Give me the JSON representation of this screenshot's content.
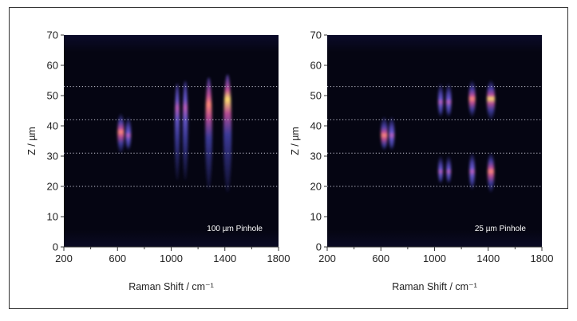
{
  "chart_data": [
    {
      "type": "heatmap",
      "annotation": "100 µm Pinhole",
      "xlabel": "Raman Shift / cm⁻¹",
      "ylabel": "Z / µm",
      "xlim": [
        200,
        1800
      ],
      "ylim": [
        0,
        70
      ],
      "xticks": [
        "200",
        "600",
        "1000",
        "1400",
        "1800"
      ],
      "xtick_values": [
        200,
        600,
        1000,
        1400,
        1800
      ],
      "yticks": [
        "0",
        "10",
        "20",
        "30",
        "40",
        "50",
        "60",
        "70"
      ],
      "ytick_values": [
        0,
        10,
        20,
        30,
        40,
        50,
        60,
        70
      ],
      "dotted_lines_z": [
        20,
        31,
        42,
        53
      ],
      "bands": [
        {
          "x": 625,
          "z_min": 31,
          "z_max": 44,
          "peak_z": 38,
          "intensity": 0.7
        },
        {
          "x": 680,
          "z_min": 32,
          "z_max": 43,
          "peak_z": 37,
          "intensity": 0.45
        },
        {
          "x": 1045,
          "z_min": 22,
          "z_max": 54,
          "peak_z": 46,
          "intensity": 0.35
        },
        {
          "x": 1105,
          "z_min": 22,
          "z_max": 55,
          "peak_z": 46,
          "intensity": 0.4
        },
        {
          "x": 1280,
          "z_min": 19,
          "z_max": 56,
          "peak_z": 47,
          "intensity": 0.75
        },
        {
          "x": 1420,
          "z_min": 18,
          "z_max": 57,
          "peak_z": 49,
          "intensity": 1.0
        }
      ]
    },
    {
      "type": "heatmap",
      "annotation": "25 µm Pinhole",
      "xlabel": "Raman Shift / cm⁻¹",
      "ylabel": "Z / µm",
      "xlim": [
        200,
        1800
      ],
      "ylim": [
        0,
        70
      ],
      "xticks": [
        "200",
        "600",
        "1000",
        "1400",
        "1800"
      ],
      "xtick_values": [
        200,
        600,
        1000,
        1400,
        1800
      ],
      "yticks": [
        "0",
        "10",
        "20",
        "30",
        "40",
        "50",
        "60",
        "70"
      ],
      "ytick_values": [
        0,
        10,
        20,
        30,
        40,
        50,
        60,
        70
      ],
      "dotted_lines_z": [
        20,
        31,
        42,
        53
      ],
      "bands": [
        {
          "x": 625,
          "z_min": 32,
          "z_max": 43,
          "peak_z": 37,
          "intensity": 0.75
        },
        {
          "x": 680,
          "z_min": 32,
          "z_max": 43,
          "peak_z": 37,
          "intensity": 0.5
        },
        {
          "x": 1045,
          "z_min": 43,
          "z_max": 54,
          "peak_z": 48,
          "intensity": 0.35
        },
        {
          "x": 1045,
          "z_min": 21,
          "z_max": 30,
          "peak_z": 25,
          "intensity": 0.3
        },
        {
          "x": 1105,
          "z_min": 43,
          "z_max": 54,
          "peak_z": 48,
          "intensity": 0.45
        },
        {
          "x": 1105,
          "z_min": 21,
          "z_max": 30,
          "peak_z": 25,
          "intensity": 0.3
        },
        {
          "x": 1280,
          "z_min": 43,
          "z_max": 55,
          "peak_z": 49,
          "intensity": 0.7
        },
        {
          "x": 1280,
          "z_min": 19,
          "z_max": 31,
          "peak_z": 25,
          "intensity": 0.45
        },
        {
          "x": 1420,
          "z_min": 42,
          "z_max": 55,
          "peak_z": 49,
          "intensity": 1.0
        },
        {
          "x": 1420,
          "z_min": 18,
          "z_max": 31,
          "peak_z": 25,
          "intensity": 0.7
        }
      ]
    }
  ]
}
